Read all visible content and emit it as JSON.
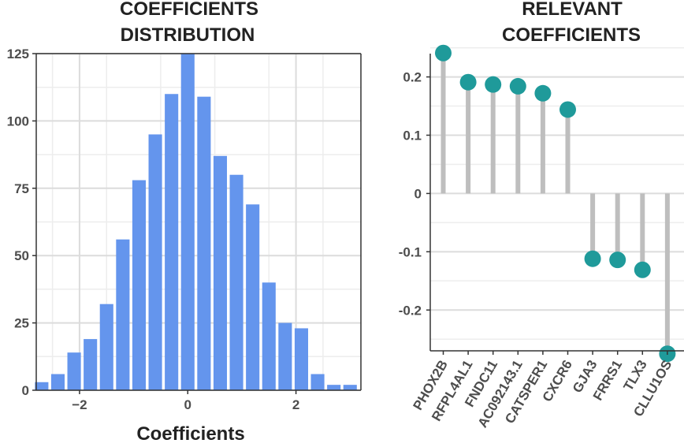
{
  "chart_data": [
    {
      "type": "bar",
      "title": "COEFFICIENTS DISTRIBUTION",
      "title_lines": [
        "COEFFICIENTS",
        "DISTRIBUTION"
      ],
      "xlabel": "Coefficients",
      "ylabel": "",
      "xlim": [
        -2.8,
        3.2
      ],
      "ylim": [
        0,
        125
      ],
      "xticks": [
        -2,
        0,
        2
      ],
      "xtick_labels": [
        "−2",
        "0",
        "2"
      ],
      "yticks": [
        0,
        25,
        50,
        75,
        100,
        125
      ],
      "ytick_labels": [
        "0",
        "25",
        "50",
        "75",
        "100",
        "125"
      ],
      "grid": true,
      "bin_width": 0.3,
      "bin_centers": [
        -2.7,
        -2.4,
        -2.1,
        -1.8,
        -1.5,
        -1.2,
        -0.9,
        -0.6,
        -0.3,
        0.0,
        0.3,
        0.6,
        0.9,
        1.2,
        1.5,
        1.8,
        2.1,
        2.4,
        2.7,
        3.0
      ],
      "values": [
        3,
        6,
        14,
        19,
        32,
        56,
        78,
        95,
        110,
        125,
        109,
        87,
        80,
        69,
        40,
        25,
        23,
        6,
        2,
        2
      ],
      "bar_color": "#6495ED"
    },
    {
      "type": "lollipop",
      "title": "RELEVANT COEFFICIENTS",
      "title_lines": [
        "RELEVANT",
        "COEFFICIENTS"
      ],
      "xlabel": "",
      "ylabel": "",
      "ylim": [
        -0.27,
        0.24
      ],
      "yticks": [
        0.2,
        0.1,
        0,
        -0.1,
        -0.2
      ],
      "ytick_labels": [
        "0.2",
        "0.1",
        "0",
        "-0.1",
        "-0.2"
      ],
      "grid": true,
      "categories": [
        "PHOX2B",
        "RFPL4AL1",
        "FNDC11",
        "AC092143.1",
        "CATSPER1",
        "CXCR6",
        "GJA3",
        "FRRS1",
        "TLX3",
        "CLLU1OS"
      ],
      "values": [
        0.241,
        0.191,
        0.187,
        0.184,
        0.172,
        0.144,
        -0.112,
        -0.114,
        -0.131,
        -0.275
      ],
      "point_color": "#1F9A9A",
      "stem_color": "#BEBEBE"
    }
  ]
}
